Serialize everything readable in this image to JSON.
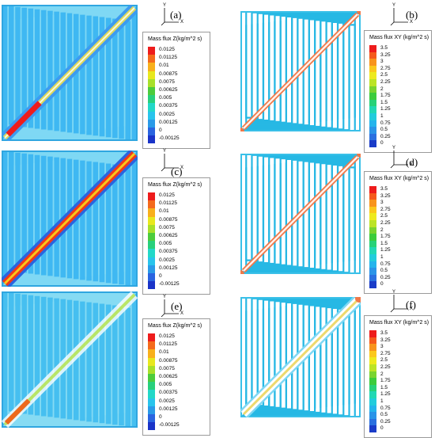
{
  "panels": [
    {
      "id": "a",
      "label": "(a)",
      "legend_title": "Mass flux Z(kg/m^2 s)",
      "scale": "z",
      "field": "z",
      "diag": "partial",
      "bg": "#3fb8f2",
      "line": "#7fd8f4",
      "axis": {
        "x": "X",
        "y": "Y"
      }
    },
    {
      "id": "b",
      "label": "(b)",
      "legend_title": "Mass flux XY (kg/m^2 s)",
      "scale": "xy",
      "field": "xy",
      "diag": "full",
      "bg": "#ffffff",
      "line": "#27b8e4",
      "axis": {
        "x": "X",
        "y": "Y"
      }
    },
    {
      "id": "c",
      "label": "(c)",
      "legend_title": "Mass flux Z(kg/m^2 s)",
      "scale": "z",
      "field": "z",
      "diag": "strong",
      "bg": "#3fb8f2",
      "line": "#7fd8f4",
      "axis": {
        "x": "X",
        "y": "Y"
      }
    },
    {
      "id": "d",
      "label": "(d)",
      "legend_title": "Mass flux XY (kg/m^2 s)",
      "scale": "xy",
      "field": "xy",
      "diag": "full",
      "bg": "#ffffff",
      "line": "#27b8e4",
      "axis": {
        "x": "X",
        "y": "Y"
      }
    },
    {
      "id": "e",
      "label": "(e)",
      "legend_title": "Mass flux Z(kg/m^2 s)",
      "scale": "z",
      "field": "z",
      "diag": "weak",
      "bg": "#46bff0",
      "line": "#86dbf3",
      "axis": {
        "x": "X",
        "y": "Y"
      }
    },
    {
      "id": "f",
      "label": "(f)",
      "legend_title": "Mass flux XY (kg/m^2 s)",
      "scale": "xy",
      "field": "xy",
      "diag": "double",
      "bg": "#ffffff",
      "line": "#27b8e4",
      "axis": {
        "x": "X",
        "y": "Y"
      }
    }
  ],
  "scales": {
    "z": {
      "values": [
        "0.0125",
        "0.01125",
        "0.01",
        "0.00875",
        "0.0075",
        "0.00625",
        "0.005",
        "0.00375",
        "0.0025",
        "0.00125",
        "0",
        "-0.00125"
      ],
      "colors": [
        "#ee1c1c",
        "#f46a1c",
        "#f8b01c",
        "#e8e81e",
        "#a8e02a",
        "#4ccc3c",
        "#28d07c",
        "#22d8c8",
        "#28c4ec",
        "#2a9ae8",
        "#2a64e0",
        "#1a34c8"
      ]
    },
    "xy": {
      "values": [
        "3.5",
        "3.25",
        "3",
        "2.75",
        "2.5",
        "2.25",
        "2",
        "1.75",
        "1.5",
        "1.25",
        "1",
        "0.75",
        "0.5",
        "0.25",
        "0"
      ],
      "colors": [
        "#ee1c1c",
        "#f55a1c",
        "#f8941c",
        "#fbc81c",
        "#eeea1e",
        "#bce426",
        "#7ad430",
        "#3ccc3c",
        "#28d278",
        "#22d8b4",
        "#22ccdc",
        "#24b4ec",
        "#2a94e8",
        "#2a70e0",
        "#1a3cc8"
      ]
    }
  }
}
